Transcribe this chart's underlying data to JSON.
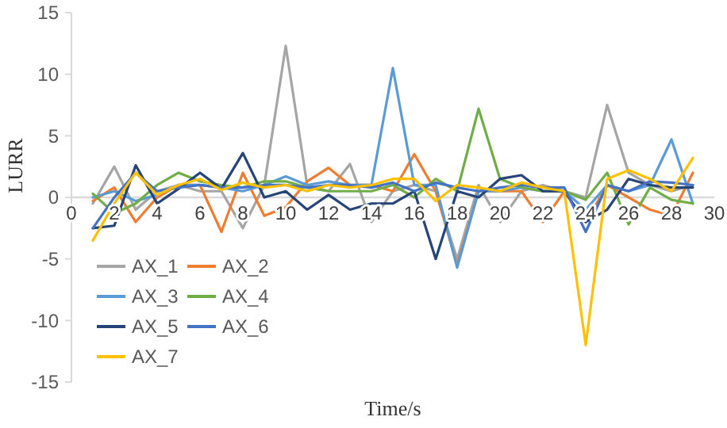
{
  "chart_data": {
    "type": "line",
    "xlabel": "Time/s",
    "ylabel": "LURR",
    "x": [
      1,
      2,
      3,
      4,
      5,
      6,
      7,
      8,
      9,
      10,
      11,
      12,
      13,
      14,
      15,
      16,
      17,
      18,
      19,
      20,
      21,
      22,
      23,
      24,
      25,
      26,
      27,
      28,
      29
    ],
    "xlim": [
      0,
      30
    ],
    "xticks": [
      0,
      2,
      4,
      6,
      8,
      10,
      12,
      14,
      16,
      18,
      20,
      22,
      24,
      26,
      28,
      30
    ],
    "ylim": [
      -15,
      15
    ],
    "yticks": [
      -15,
      -10,
      -5,
      0,
      5,
      10,
      15
    ],
    "grid": false,
    "legend": "bottom left",
    "marker": "none",
    "line_style": "solid",
    "series": [
      {
        "name": "AX_1",
        "color": "#a5a5a5",
        "values": [
          -0.5,
          2.5,
          -1,
          0.5,
          1,
          0.5,
          0.5,
          -2.5,
          1,
          12.3,
          1,
          0.5,
          2.7,
          -2,
          0.5,
          1,
          0.5,
          -5,
          1,
          -2,
          0.5,
          1,
          0.5,
          0,
          7.5,
          2,
          1,
          0.5,
          1
        ]
      },
      {
        "name": "AX_2",
        "color": "#ed7d31",
        "values": [
          -0.3,
          0.8,
          -2,
          0,
          1,
          1,
          -2.8,
          2,
          -1.5,
          -0.8,
          1.3,
          2.4,
          1,
          1,
          0.5,
          3.5,
          0.5,
          -5.5,
          0.5,
          0.5,
          0.5,
          -2,
          0.5,
          -2,
          1,
          0,
          -1,
          -1.5,
          2
        ]
      },
      {
        "name": "AX_3",
        "color": "#5b9bd5",
        "values": [
          0,
          0.5,
          -0.3,
          0.2,
          1,
          1,
          0.8,
          0.5,
          1,
          1.7,
          1,
          1.3,
          1,
          1,
          10.5,
          1,
          1,
          -5.7,
          0.5,
          0.5,
          0.8,
          0.5,
          0.5,
          -1,
          1,
          0.5,
          1,
          4.7,
          -0.5
        ]
      },
      {
        "name": "AX_4",
        "color": "#70ad47",
        "values": [
          0.3,
          -1.3,
          -0.5,
          1,
          2,
          1.3,
          1,
          0.8,
          1.3,
          1.3,
          0.8,
          0.5,
          0.5,
          0.5,
          1,
          0,
          1.5,
          0.5,
          7.2,
          1.5,
          0.8,
          0.5,
          0.5,
          -0.2,
          2,
          -2.2,
          0.8,
          -0.2,
          -0.5
        ]
      },
      {
        "name": "AX_5",
        "color": "#264478",
        "values": [
          -2.5,
          -2.3,
          2.6,
          -0.5,
          0.7,
          2,
          0.7,
          3.6,
          0,
          0.5,
          -1,
          0.2,
          -1,
          -0.5,
          -0.5,
          0.5,
          -5,
          0.5,
          0,
          1.5,
          1.8,
          0.5,
          0.5,
          -2,
          -1,
          1.5,
          1,
          0.8,
          0.8
        ]
      },
      {
        "name": "AX_6",
        "color": "#4472c4",
        "values": [
          -2.5,
          0,
          2,
          0.5,
          0.8,
          1,
          0.8,
          0.8,
          1,
          1,
          0.8,
          1,
          1,
          0.8,
          1.2,
          0.5,
          1.2,
          0.8,
          0.5,
          0.8,
          1,
          0.8,
          0.8,
          -2.8,
          1,
          0.5,
          1.3,
          1.2,
          1
        ]
      },
      {
        "name": "AX_7",
        "color": "#ffc000",
        "values": [
          -3.5,
          -0.5,
          2,
          0.2,
          1,
          1.5,
          0.6,
          1.2,
          0.8,
          1,
          0.5,
          1,
          0.8,
          1,
          1.5,
          1.5,
          -0.3,
          1,
          0.8,
          0.5,
          1.2,
          0.8,
          0.5,
          -12,
          1.5,
          2.2,
          1.5,
          0.5,
          3.2
        ]
      }
    ]
  }
}
